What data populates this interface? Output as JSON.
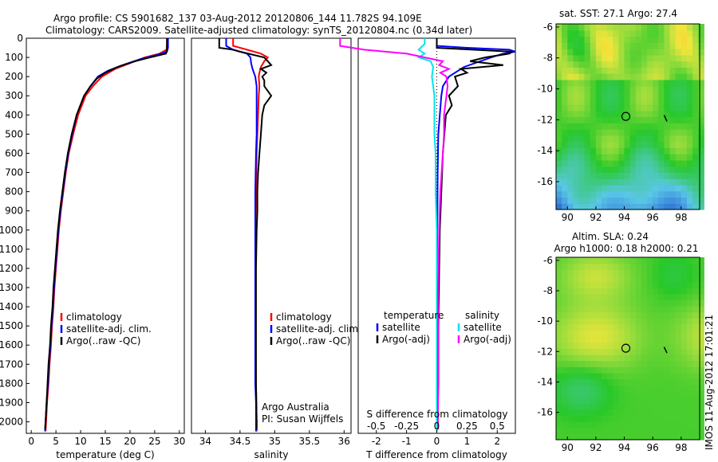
{
  "header": {
    "line1": "Argo profile: CS 5901682_137 03-Aug-2012 20120806_144 11.782S 94.109E",
    "line2": "Climatology: CARS2009. Satellite-adjusted climatology: synTS_20120804.nc (0.34d later)"
  },
  "side_caption": "IMOS 11-Aug-2012 17:01:21",
  "colors": {
    "clim": "#ff0000",
    "sat": "#0000ff",
    "argo": "#000000",
    "salt_sat": "#00e5ee",
    "salt_argo": "#ff00ff"
  },
  "chart_data": [
    {
      "type": "line",
      "id": "temperature",
      "xlabel": "temperature (deg C)",
      "xlim": [
        -1,
        31
      ],
      "ylim": [
        0,
        2060
      ],
      "xticks": [
        0,
        5,
        10,
        15,
        20,
        25,
        30
      ],
      "yticks": [
        0,
        100,
        200,
        300,
        400,
        500,
        600,
        700,
        800,
        900,
        1000,
        1100,
        1200,
        1300,
        1400,
        1500,
        1600,
        1700,
        1800,
        1900,
        2000
      ],
      "legend": [
        "climatology",
        "satellite-adj. clim.",
        "Argo(..raw -QC)"
      ],
      "series": [
        {
          "name": "climatology",
          "color": "#ff0000",
          "depth": [
            0,
            30,
            60,
            80,
            100,
            130,
            160,
            200,
            250,
            300,
            400,
            500,
            600,
            700,
            800,
            900,
            1000,
            1100,
            1200,
            1300,
            1400,
            1500,
            1600,
            1700,
            1800,
            1900,
            2000,
            2050
          ],
          "values": [
            27.5,
            27.5,
            27.4,
            26,
            23,
            20,
            17,
            14.3,
            12.5,
            11,
            9.5,
            8.5,
            7.6,
            7,
            6.5,
            6,
            5.6,
            5.3,
            5,
            4.7,
            4.5,
            4.2,
            4,
            3.7,
            3.5,
            3.2,
            3,
            2.9
          ]
        },
        {
          "name": "satellite-adj. clim.",
          "color": "#0000ff",
          "depth": [
            0,
            50,
            70,
            90,
            110,
            140,
            170,
            200,
            250,
            300,
            400,
            500,
            600,
            700,
            800,
            900,
            1000,
            1100,
            1200,
            1300,
            1400,
            1500,
            1600,
            1700,
            1800,
            1900,
            2000,
            2050
          ],
          "values": [
            27.7,
            27.7,
            27.5,
            25,
            22,
            18.5,
            15.5,
            13.5,
            12,
            10.7,
            9.2,
            8.3,
            7.5,
            6.9,
            6.4,
            5.9,
            5.5,
            5.2,
            4.9,
            4.6,
            4.4,
            4.1,
            3.9,
            3.6,
            3.4,
            3.1,
            2.9,
            2.8
          ]
        },
        {
          "name": "Argo(..raw -QC)",
          "color": "#000000",
          "depth": [
            0,
            60,
            80,
            100,
            120,
            150,
            180,
            210,
            250,
            300,
            400,
            500,
            600,
            700,
            800,
            900,
            1000,
            1100,
            1200,
            1300,
            1400,
            1500,
            1600,
            1700,
            1800,
            1900,
            2000,
            2040
          ],
          "values": [
            27.5,
            27.5,
            27.3,
            24,
            21,
            17.5,
            15,
            13.3,
            12,
            10.7,
            9.2,
            8.2,
            7.4,
            6.8,
            6.3,
            5.8,
            5.4,
            5.1,
            4.8,
            4.5,
            4.3,
            4,
            3.8,
            3.5,
            3.3,
            3.1,
            2.9,
            2.8
          ]
        }
      ]
    },
    {
      "type": "line",
      "id": "salinity",
      "xlabel": "salinity",
      "xlim": [
        33.8,
        36.1
      ],
      "ylim": [
        0,
        2060
      ],
      "xticks": [
        34,
        34.5,
        35,
        35.5,
        36
      ],
      "legend": [
        "climatology",
        "satellite-adj. clim.",
        "Argo(..raw -QC)"
      ],
      "annotation": [
        "Argo Australia",
        "PI: Susan Wijffels"
      ],
      "series": [
        {
          "name": "climatology",
          "color": "#ff0000",
          "depth": [
            0,
            40,
            60,
            80,
            100,
            120,
            150,
            180,
            200,
            250,
            300,
            400,
            500,
            600,
            800,
            1000,
            1200,
            1500,
            1800,
            2000,
            2050
          ],
          "values": [
            34.4,
            34.4,
            34.6,
            34.8,
            34.9,
            34.85,
            34.8,
            34.78,
            34.77,
            34.78,
            34.77,
            34.76,
            34.75,
            34.74,
            34.73,
            34.72,
            34.72,
            34.72,
            34.73,
            34.74,
            34.74
          ]
        },
        {
          "name": "satellite-adj. clim.",
          "color": "#0000ff",
          "depth": [
            0,
            40,
            60,
            80,
            100,
            130,
            160,
            200,
            250,
            300,
            400,
            500,
            600,
            800,
            1000,
            1200,
            1500,
            1800,
            1900,
            2050
          ],
          "values": [
            34.3,
            34.3,
            34.4,
            34.6,
            34.65,
            34.66,
            34.68,
            34.72,
            34.74,
            34.74,
            34.74,
            34.74,
            34.73,
            34.72,
            34.72,
            34.72,
            34.72,
            34.72,
            34.73,
            34.73
          ]
        },
        {
          "name": "Argo(..raw -QC)",
          "color": "#000000",
          "depth": [
            0,
            50,
            60,
            70,
            100,
            140,
            160,
            180,
            200,
            220,
            250,
            300,
            350,
            400,
            500,
            600,
            700,
            800,
            900,
            1000,
            1200,
            1500,
            1800,
            2000,
            2040
          ],
          "values": [
            34.2,
            34.2,
            34.4,
            34.5,
            34.85,
            34.95,
            34.8,
            34.88,
            34.82,
            34.85,
            34.85,
            34.95,
            34.85,
            34.82,
            34.8,
            34.78,
            34.76,
            34.75,
            34.75,
            34.74,
            34.73,
            34.73,
            34.73,
            34.74,
            34.74
          ]
        }
      ]
    },
    {
      "type": "line",
      "id": "difference",
      "xlabel": "T difference from climatology",
      "xlabel_top": "S difference from climatology",
      "xlim": [
        -2.6,
        2.6
      ],
      "ylim": [
        0,
        2060
      ],
      "xticks": [
        -2,
        -1,
        0,
        1,
        2
      ],
      "s_ticks": [
        -0.5,
        -0.25,
        0,
        0.25,
        0.5
      ],
      "s_tick_labels": [
        "-0.5",
        "-0.25",
        "0",
        "0.25",
        "0.5"
      ],
      "legend_groups": {
        "temperature": [
          "satellite",
          "Argo(-adj)"
        ],
        "salinity": [
          "satellite",
          "Argo(-adj)"
        ]
      },
      "series": [
        {
          "name": "temperature satellite",
          "color": "#0000ff",
          "depth": [
            0,
            40,
            50,
            60,
            70,
            80,
            100,
            150,
            200,
            250,
            300,
            400,
            500,
            700,
            900,
            1100,
            1400,
            1700,
            2000,
            2050
          ],
          "values": [
            0,
            0,
            1,
            2.4,
            2.6,
            2.2,
            1.8,
            0.9,
            0.4,
            0.2,
            0.15,
            0.1,
            0.05,
            0.03,
            0.02,
            0.01,
            0.01,
            0.01,
            0.0,
            0.0
          ]
        },
        {
          "name": "temperature Argo(-adj)",
          "color": "#000000",
          "depth": [
            0,
            50,
            60,
            70,
            80,
            100,
            120,
            140,
            160,
            180,
            200,
            250,
            300,
            350,
            400,
            500,
            600,
            800,
            1000,
            1200,
            1500,
            1800,
            2000,
            2040
          ],
          "values": [
            0,
            0,
            1.2,
            2.5,
            2.4,
            1.6,
            1.1,
            2.2,
            0.8,
            1.0,
            0.6,
            0.7,
            0.4,
            0.5,
            0.3,
            0.25,
            0.2,
            0.15,
            0.1,
            0.08,
            0.05,
            0.05,
            0.03,
            0.03
          ]
        },
        {
          "name": "salinity satellite",
          "color": "#00e5ee",
          "depth": [
            0,
            30,
            60,
            80,
            100,
            120,
            150,
            200,
            250,
            300,
            400,
            500,
            600,
            800,
            1000,
            1300,
            1600,
            1900,
            2050
          ],
          "values": [
            -0.1,
            -0.1,
            -0.15,
            -0.1,
            -0.15,
            -0.05,
            -0.03,
            -0.04,
            -0.03,
            -0.02,
            -0.02,
            -0.02,
            -0.01,
            -0.01,
            0,
            0,
            0,
            0,
            0
          ]
        },
        {
          "name": "salinity Argo(-adj)",
          "color": "#ff00ff",
          "depth": [
            0,
            40,
            60,
            80,
            100,
            120,
            140,
            160,
            180,
            200,
            250,
            300,
            400,
            500,
            600,
            800,
            1000,
            1300,
            1600,
            1900,
            2040
          ],
          "values": [
            -0.8,
            -0.8,
            -0.6,
            -0.25,
            -0.1,
            0.05,
            0.02,
            0.1,
            0.03,
            0.08,
            0.09,
            0.08,
            0.06,
            0.06,
            0.05,
            0.03,
            0.02,
            0.01,
            0.01,
            0.01,
            0.01
          ]
        }
      ]
    },
    {
      "type": "heatmap",
      "id": "sst_map",
      "title": "sat. SST: 27.1  Argo: 27.4",
      "xlim": [
        89.2,
        99.3
      ],
      "ylim": [
        -17.8,
        -5.8
      ],
      "xticks": [
        90,
        92,
        94,
        96,
        98
      ],
      "yticks": [
        -6,
        -8,
        -10,
        -12,
        -14,
        -16
      ],
      "marker": {
        "lon": 94.109,
        "lat": -11.782
      }
    },
    {
      "type": "heatmap",
      "id": "sla_map",
      "title": "Altim. SLA: 0.24",
      "subtitle": "Argo h1000: 0.18 h2000: 0.21",
      "xlim": [
        89.2,
        99.3
      ],
      "ylim": [
        -17.8,
        -5.8
      ],
      "xticks": [
        90,
        92,
        94,
        96,
        98
      ],
      "yticks": [
        -6,
        -8,
        -10,
        -12,
        -14,
        -16
      ],
      "marker": {
        "lon": 94.109,
        "lat": -11.782
      }
    }
  ]
}
